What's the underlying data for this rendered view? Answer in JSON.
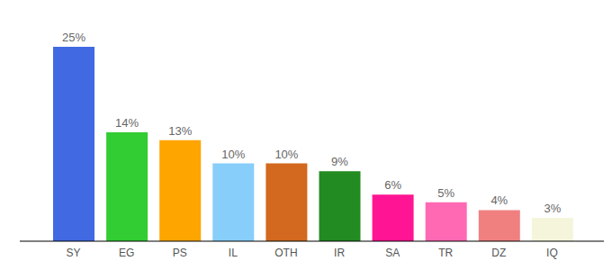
{
  "chart_data": {
    "type": "bar",
    "categories": [
      "SY",
      "EG",
      "PS",
      "IL",
      "OTH",
      "IR",
      "SA",
      "TR",
      "DZ",
      "IQ"
    ],
    "values": [
      25,
      14,
      13,
      10,
      10,
      9,
      6,
      5,
      4,
      3
    ],
    "value_labels": [
      "25%",
      "14%",
      "13%",
      "10%",
      "10%",
      "9%",
      "6%",
      "5%",
      "4%",
      "3%"
    ],
    "colors": [
      "#4169e1",
      "#32cd32",
      "#ffa500",
      "#87cefa",
      "#d2691e",
      "#228b22",
      "#ff1493",
      "#ff69b4",
      "#f08080",
      "#f5f5dc"
    ],
    "data_labels": true,
    "tick_labels": "x"
  }
}
